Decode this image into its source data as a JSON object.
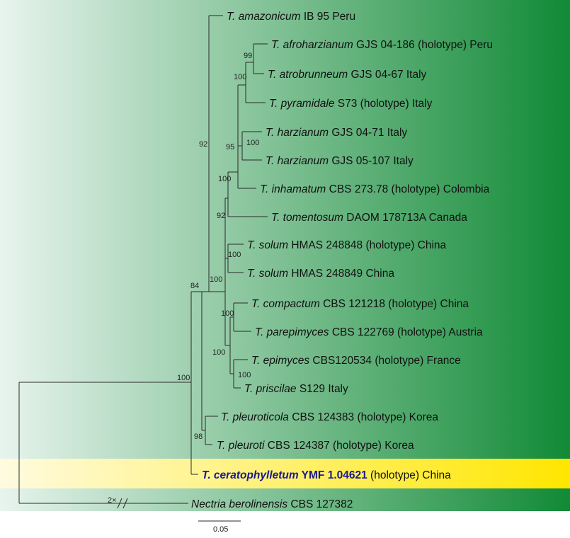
{
  "colors": {
    "gradient_start": "#e8f4ee",
    "gradient_end": "#118a36",
    "highlight_start": "#fffbe0",
    "highlight_end": "#ffe600",
    "highlight_text": "#1a1a8c"
  },
  "taxa": [
    {
      "genus": "T. amazonicum",
      "rest": " IB 95 Peru"
    },
    {
      "genus": "T. afroharzianum",
      "rest": " GJS 04-186 (holotype) Peru"
    },
    {
      "genus": "T. atrobrunneum",
      "rest": " GJS 04-67 Italy"
    },
    {
      "genus": "T. pyramidale",
      "rest": " S73 (holotype) Italy"
    },
    {
      "genus": "T. harzianum",
      "rest": " GJS 04-71 Italy"
    },
    {
      "genus": "T. harzianum",
      "rest": " GJS 05-107 Italy"
    },
    {
      "genus": "T. inhamatum",
      "rest": " CBS 273.78 (holotype) Colombia"
    },
    {
      "genus": "T. tomentosum",
      "rest": " DAOM 178713A Canada"
    },
    {
      "genus": "T. solum",
      "rest": " HMAS 248848 (holotype) China"
    },
    {
      "genus": "T. solum",
      "rest": " HMAS 248849 China"
    },
    {
      "genus": "T. compactum",
      "rest": " CBS 121218 (holotype) China"
    },
    {
      "genus": "T. parepimyces",
      "rest": " CBS 122769 (holotype) Austria"
    },
    {
      "genus": "T. epimyces",
      "rest": " CBS120534 (holotype) France"
    },
    {
      "genus": "T. priscilae",
      "rest": " S129 Italy"
    },
    {
      "genus": "T. pleuroticola",
      "rest": " CBS 124383 (holotype) Korea"
    },
    {
      "genus": "T. pleuroti",
      "rest": " CBS 124387 (holotype) Korea"
    },
    {
      "genus": "T. ceratophylletum",
      "rest_bold": " YMF 1.04621",
      "rest": " (holotype) China",
      "highlight": true
    },
    {
      "genus": "Nectria berolinensis",
      "rest": " CBS 127382"
    }
  ],
  "support_values": {
    "afro_atro": "99",
    "afro_pyr": "100",
    "harz": "100",
    "harz_inh": "95",
    "inh_tom": "100",
    "tom_node": "92",
    "solum": "100",
    "comp_par": "100",
    "epi_pri": "100",
    "group_comp": "100",
    "core": "100",
    "amaz": "92",
    "pleuro": "98",
    "all_trich": "84",
    "root": "100"
  },
  "branch_break": "2×",
  "scale_bar": "0.05"
}
